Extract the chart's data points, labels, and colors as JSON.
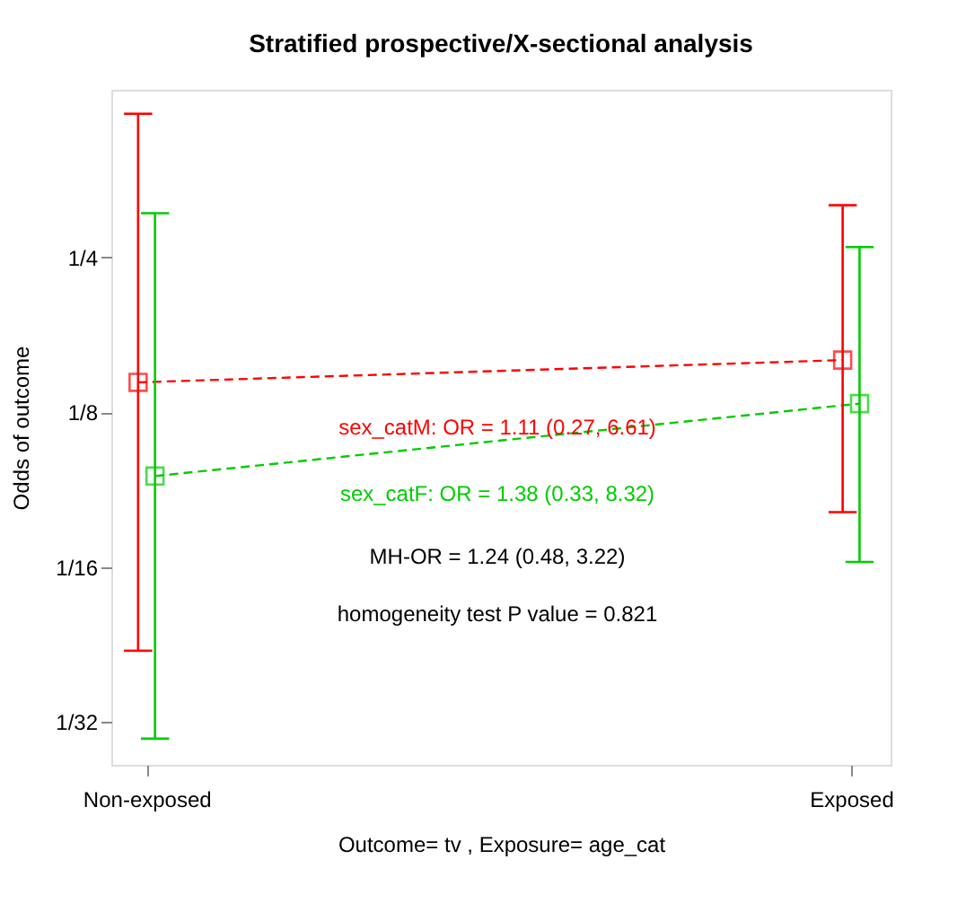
{
  "chart_data": {
    "type": "line",
    "title": "Stratified prospective/X-sectional analysis",
    "xlabel": "Outcome= tv , Exposure= age_cat",
    "ylabel": "Odds of outcome",
    "categories": [
      "Non-exposed",
      "Exposed"
    ],
    "series": [
      {
        "color": "#ff0000",
        "values": [
          0.143,
          0.158
        ],
        "errors": [
          [
            0.043,
            0.476
          ],
          [
            0.08,
            0.316
          ]
        ]
      },
      {
        "color": "#00cc00",
        "values": [
          0.094,
          0.13
        ],
        "errors": [
          [
            0.029,
            0.305
          ],
          [
            0.064,
            0.262
          ]
        ]
      }
    ],
    "log": "y",
    "ylim": [
      0.0258,
      0.53
    ],
    "yticks": [
      {
        "value": 0.03125,
        "label": "1/32"
      },
      {
        "value": 0.0625,
        "label": "1/16"
      },
      {
        "value": 0.125,
        "label": "1/8"
      },
      {
        "value": 0.25,
        "label": "1/4"
      }
    ],
    "marker": "square",
    "line_style": "dashed",
    "grid": false,
    "legend": false,
    "annotations": [
      "sex_catM: OR = 1.11 (0.27, 6.61)",
      "sex_catF: OR = 1.38 (0.33, 8.32)",
      "MH-OR = 1.24 (0.48, 3.22)",
      "homogeneity test P value = 0.821"
    ]
  }
}
